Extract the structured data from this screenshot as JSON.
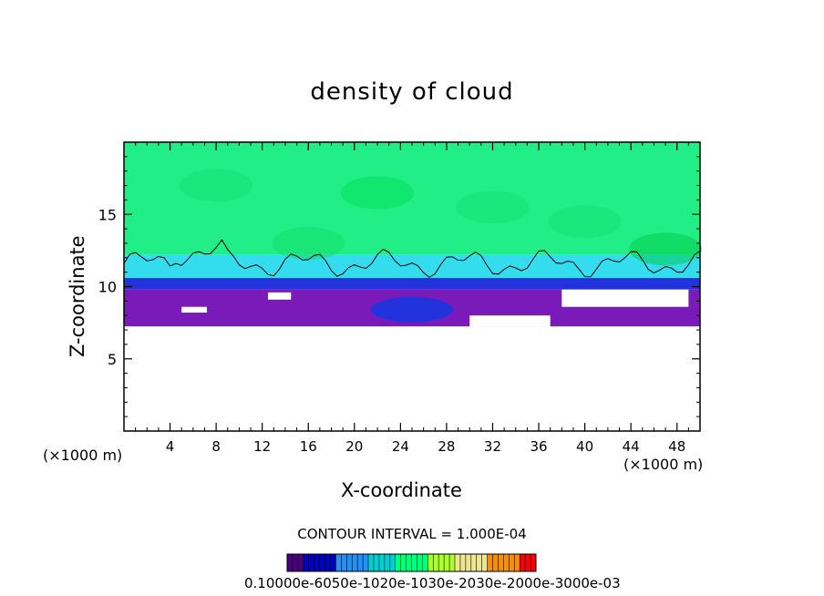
{
  "chart_data": {
    "type": "heatmap",
    "title": "density of cloud",
    "xlabel": "X-coordinate",
    "ylabel": "Z-coordinate",
    "x_unit_label": "(×1000 m)",
    "y_unit_label": "(×1000 m)",
    "xlim": [
      0,
      50
    ],
    "ylim": [
      0,
      20
    ],
    "x_ticks": [
      4,
      8,
      12,
      16,
      20,
      24,
      28,
      32,
      36,
      40,
      44,
      48
    ],
    "y_ticks": [
      5,
      10,
      15
    ],
    "contour_interval_label": "CONTOUR INTERVAL = 1.000E-04",
    "colorbar_labels_text": "0.10000e-6050e-1020e-1030e-2030e-2000e-3000e-03",
    "colormap": [
      "#4b0082",
      "#0000cd",
      "#1e90ff",
      "#00ced1",
      "#00ff7f",
      "#adff2f",
      "#f0e68c",
      "#ff8c00",
      "#ff0000"
    ],
    "layers": [
      {
        "z_bottom": 12.2,
        "z_top": 20,
        "color": "#22ee88"
      },
      {
        "z_bottom": 10.6,
        "z_top": 12.2,
        "color": "#33ddee"
      },
      {
        "z_bottom": 9.8,
        "z_top": 10.6,
        "color": "#2233dd"
      },
      {
        "z_bottom": 7.2,
        "z_top": 9.8,
        "color": "#7a1ab8"
      }
    ],
    "colors": {
      "upper": "#22ee88",
      "mid": "#33ddee",
      "blue": "#2233dd",
      "purple": "#7a1ab8"
    }
  }
}
